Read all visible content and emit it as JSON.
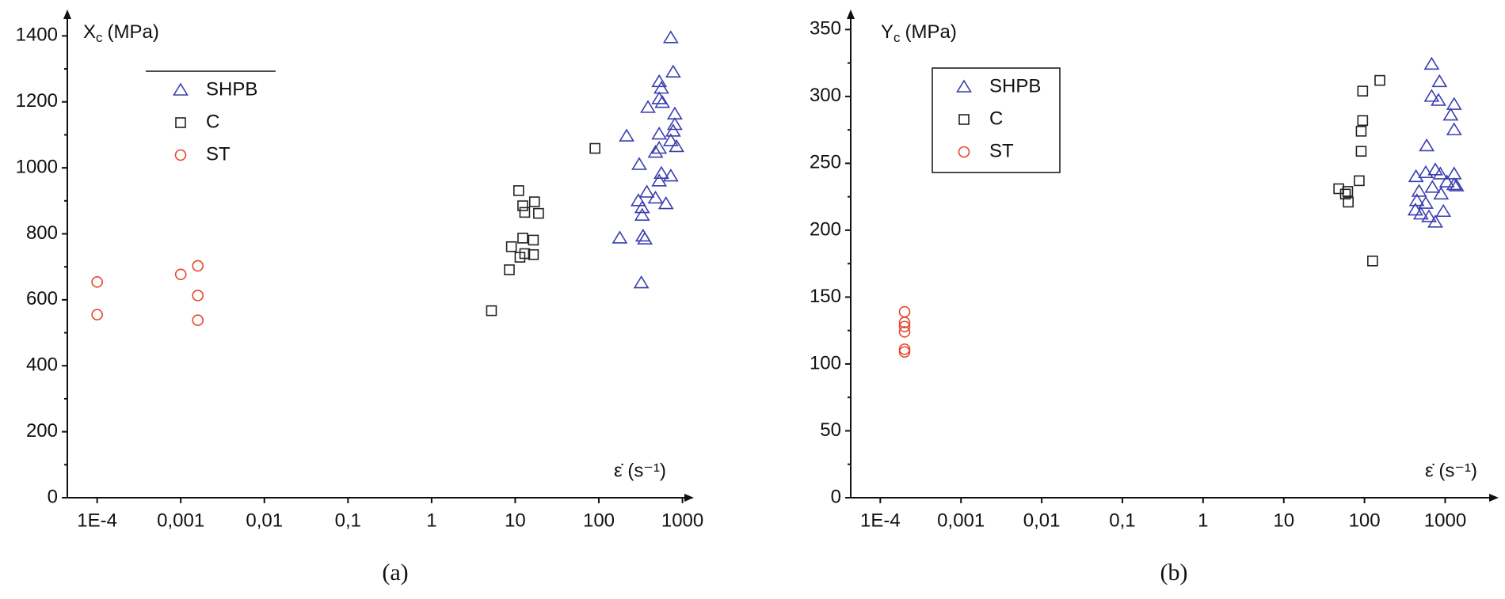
{
  "chart_data": [
    {
      "type": "scatter",
      "caption": "(a)",
      "y_label": {
        "main": "X",
        "sub": "c",
        "unit": "(MPa)"
      },
      "x_label": "ε̇ (s⁻¹)",
      "log_x": true,
      "xlim": [
        4.4e-05,
        1370
      ],
      "ylim": [
        0,
        1480
      ],
      "xticks": [
        {
          "value": 0.0001,
          "label": "1E-4"
        },
        {
          "value": 0.001,
          "label": "0,001"
        },
        {
          "value": 0.01,
          "label": "0,01"
        },
        {
          "value": 0.1,
          "label": "0,1"
        },
        1,
        10,
        100,
        1000
      ],
      "yticks": [
        0,
        200,
        400,
        600,
        800,
        1000,
        1200,
        1400
      ],
      "series": [
        {
          "name": "SHPB",
          "color": "#3b3fae",
          "marker": "triangle",
          "x": [
            725,
            775,
            527,
            560,
            527,
            575,
            387,
            215,
            810,
            810,
            775,
            527,
            725,
            850,
            527,
            476,
            304,
            560,
            527,
            725,
            375,
            476,
            297,
            635,
            330,
            330,
            338,
            355,
            178,
            322
          ],
          "values": [
            1394,
            1290,
            1261,
            1241,
            1209,
            1198,
            1183,
            1096,
            1163,
            1131,
            1111,
            1102,
            1082,
            1064,
            1059,
            1047,
            1010,
            983,
            960,
            975,
            926,
            908,
            900,
            891,
            879,
            856,
            793,
            784,
            787,
            651
          ]
        },
        {
          "name": "C",
          "color": "#222222",
          "marker": "square",
          "x": [
            5.2,
            11,
            12.3,
            17,
            19,
            13,
            9,
            12.3,
            16.5,
            8.5,
            11.4,
            13,
            16.5,
            90
          ],
          "values": [
            567,
            931,
            885,
            897,
            862,
            865,
            761,
            787,
            781,
            691,
            729,
            740,
            737,
            1059
          ]
        },
        {
          "name": "ST",
          "color": "#e8452c",
          "marker": "circle",
          "x": [
            0.0001,
            0.0001,
            0.001,
            0.0016,
            0.0016,
            0.0016
          ],
          "values": [
            654,
            555,
            677,
            703,
            613,
            538
          ]
        }
      ]
    },
    {
      "type": "scatter",
      "caption": "(b)",
      "y_label": {
        "main": "Y",
        "sub": "c",
        "unit": "(MPa)"
      },
      "x_label": "ε̇ (s⁻¹)",
      "log_x": true,
      "xlim": [
        4.3e-05,
        4600
      ],
      "ylim": [
        0,
        365
      ],
      "xticks": [
        {
          "value": 0.0001,
          "label": "1E-4"
        },
        {
          "value": 0.001,
          "label": "0,001"
        },
        {
          "value": 0.01,
          "label": "0,01"
        },
        {
          "value": 0.1,
          "label": "0,1"
        },
        1,
        10,
        100,
        1000
      ],
      "yticks": [
        0,
        50,
        100,
        150,
        200,
        250,
        300,
        350
      ],
      "series": [
        {
          "name": "SHPB",
          "color": "#3b3fae",
          "marker": "triangle",
          "x": [
            680,
            850,
            680,
            825,
            1290,
            1170,
            1290,
            590,
            755,
            870,
            1290,
            435,
            575,
            1050,
            1290,
            1380,
            475,
            695,
            890,
            445,
            575,
            427,
            950,
            630,
            500,
            755
          ],
          "values": [
            324,
            311,
            300,
            297,
            294,
            286,
            275,
            263,
            245,
            242,
            242,
            240,
            243,
            236,
            234,
            233,
            229,
            232,
            227,
            222,
            220,
            215,
            214,
            210,
            212,
            206
          ]
        },
        {
          "name": "C",
          "color": "#222222",
          "marker": "square",
          "x": [
            155,
            95,
            95,
            91,
            91,
            86,
            48,
            62,
            58,
            63,
            126
          ],
          "values": [
            312,
            304,
            282,
            274,
            259,
            237,
            231,
            229,
            227,
            221,
            177
          ]
        },
        {
          "name": "ST",
          "color": "#e8452c",
          "marker": "circle",
          "x": [
            0.0002,
            0.0002,
            0.0002,
            0.0002,
            0.0002,
            0.0002
          ],
          "values": [
            139,
            131,
            128,
            124,
            111,
            109
          ]
        }
      ]
    }
  ]
}
